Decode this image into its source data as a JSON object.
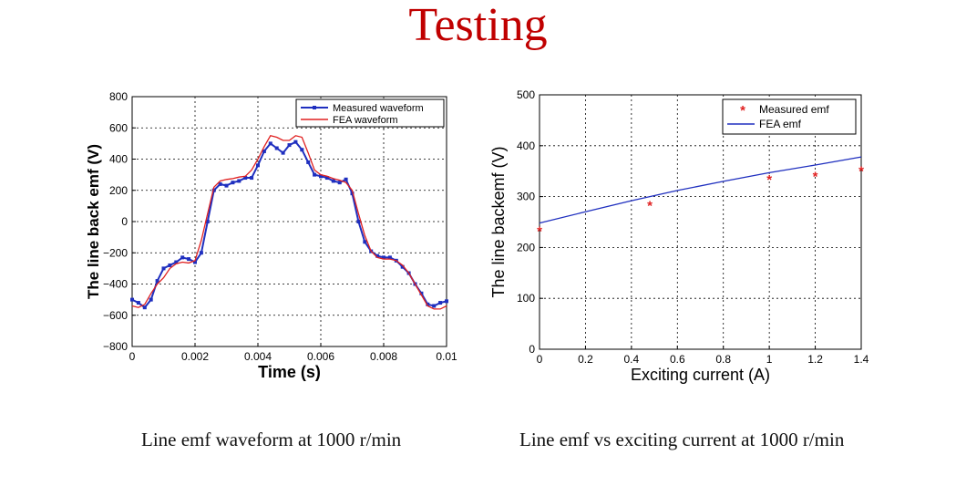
{
  "slide": {
    "title": "Testing",
    "title_color": "#c00000"
  },
  "captions": {
    "left": "Line emf waveform at 1000 r/min",
    "right": "Line emf vs exciting current at 1000 r/min"
  },
  "chart_data": [
    {
      "type": "line",
      "xlabel": "Time (s)",
      "ylabel": "The line back emf (V)",
      "xlim": [
        0,
        0.01
      ],
      "ylim": [
        -800,
        800
      ],
      "xticks": [
        "0",
        "0.002",
        "0.004",
        "0.006",
        "0.008",
        "0.01"
      ],
      "yticks": [
        "800",
        "600",
        "400",
        "200",
        "0",
        "−200",
        "−400",
        "−600",
        "−800"
      ],
      "grid": true,
      "legend_position": "top-right",
      "series": [
        {
          "name": "Measured waveform",
          "color": "#1f2fbf",
          "marker": "square",
          "x": [
            0,
            0.0002,
            0.0004,
            0.0006,
            0.0008,
            0.001,
            0.0012,
            0.0014,
            0.0016,
            0.0018,
            0.002,
            0.0022,
            0.0024,
            0.0026,
            0.0028,
            0.003,
            0.0032,
            0.0034,
            0.0036,
            0.0038,
            0.004,
            0.0042,
            0.0044,
            0.0046,
            0.0048,
            0.005,
            0.0052,
            0.0054,
            0.0056,
            0.0058,
            0.006,
            0.0062,
            0.0064,
            0.0066,
            0.0068,
            0.007,
            0.0072,
            0.0074,
            0.0076,
            0.0078,
            0.008,
            0.0082,
            0.0084,
            0.0086,
            0.0088,
            0.009,
            0.0092,
            0.0094,
            0.0096,
            0.0098,
            0.01
          ],
          "values": [
            -500,
            -520,
            -550,
            -500,
            -380,
            -300,
            -280,
            -260,
            -230,
            -240,
            -260,
            -200,
            0,
            200,
            240,
            230,
            250,
            260,
            280,
            280,
            360,
            450,
            500,
            470,
            440,
            490,
            510,
            460,
            380,
            300,
            290,
            280,
            260,
            250,
            270,
            180,
            0,
            -130,
            -190,
            -220,
            -230,
            -230,
            -250,
            -290,
            -330,
            -400,
            -460,
            -530,
            -540,
            -520,
            -510
          ]
        },
        {
          "name": "FEA waveform",
          "color": "#e02020",
          "marker": "none",
          "x": [
            0,
            0.0002,
            0.0004,
            0.0006,
            0.0008,
            0.001,
            0.0012,
            0.0014,
            0.0016,
            0.0018,
            0.002,
            0.0022,
            0.0024,
            0.0026,
            0.0028,
            0.003,
            0.0032,
            0.0034,
            0.0036,
            0.0038,
            0.004,
            0.0042,
            0.0044,
            0.0046,
            0.0048,
            0.005,
            0.0052,
            0.0054,
            0.0056,
            0.0058,
            0.006,
            0.0062,
            0.0064,
            0.0066,
            0.0068,
            0.007,
            0.0072,
            0.0074,
            0.0076,
            0.0078,
            0.008,
            0.0082,
            0.0084,
            0.0086,
            0.0088,
            0.009,
            0.0092,
            0.0094,
            0.0096,
            0.0098,
            0.01
          ],
          "values": [
            -540,
            -550,
            -530,
            -460,
            -400,
            -360,
            -300,
            -270,
            -260,
            -265,
            -250,
            -120,
            50,
            220,
            260,
            270,
            275,
            285,
            290,
            330,
            400,
            480,
            550,
            540,
            520,
            520,
            550,
            540,
            440,
            330,
            300,
            290,
            275,
            265,
            250,
            200,
            50,
            -90,
            -190,
            -230,
            -240,
            -240,
            -250,
            -280,
            -330,
            -400,
            -470,
            -540,
            -560,
            -560,
            -540
          ]
        }
      ]
    },
    {
      "type": "line",
      "xlabel": "Exciting current (A)",
      "ylabel": "The line backemf (V)",
      "xlim": [
        0,
        1.4
      ],
      "ylim": [
        0,
        500
      ],
      "xticks": [
        "0",
        "0.2",
        "0.4",
        "0.6",
        "0.8",
        "1",
        "1.2",
        "1.4"
      ],
      "yticks": [
        "500",
        "400",
        "300",
        "200",
        "100",
        "0"
      ],
      "grid": true,
      "legend_position": "top-right",
      "series": [
        {
          "name": "Measured emf",
          "color": "#e02020",
          "marker": "star",
          "x": [
            0,
            0.48,
            1.0,
            1.2,
            1.4
          ],
          "values": [
            232,
            282,
            333,
            340,
            350
          ]
        },
        {
          "name": "FEA emf",
          "color": "#1f2fbf",
          "marker": "none",
          "x": [
            0,
            0.2,
            0.4,
            0.6,
            0.8,
            1.0,
            1.2,
            1.4
          ],
          "values": [
            248,
            270,
            292,
            312,
            330,
            347,
            362,
            378
          ]
        }
      ]
    }
  ]
}
